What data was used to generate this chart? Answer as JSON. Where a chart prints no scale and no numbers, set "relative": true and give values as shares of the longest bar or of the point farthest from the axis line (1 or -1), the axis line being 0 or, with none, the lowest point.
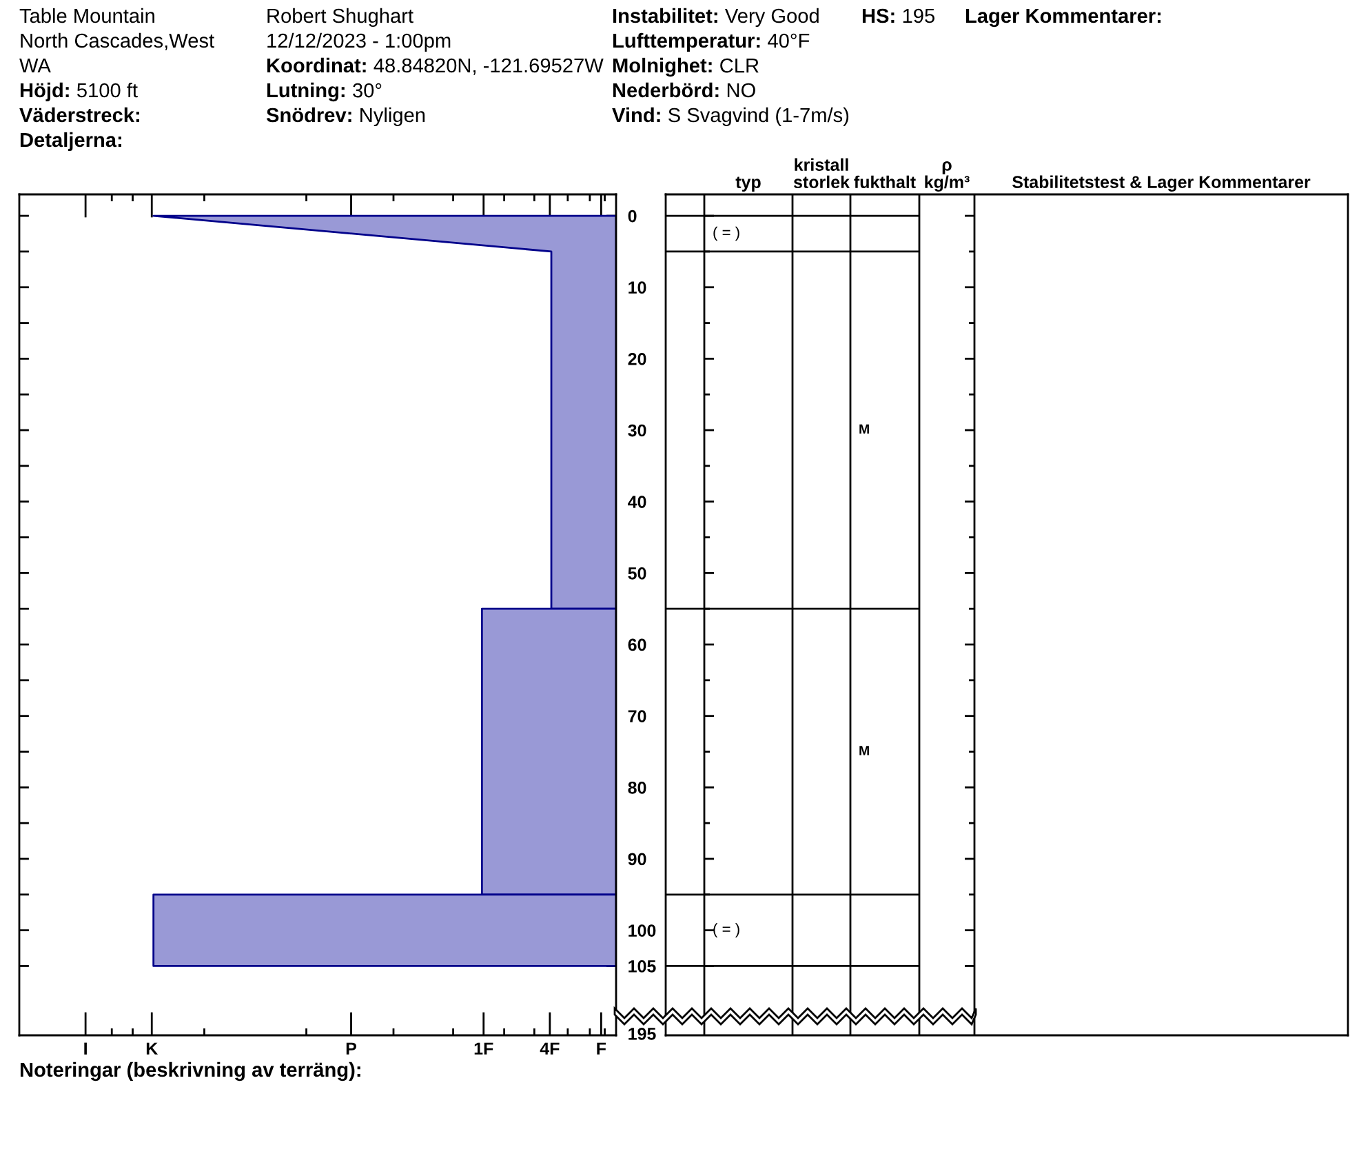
{
  "chart_data": [
    {
      "type": "other",
      "annotations": [
        "Table Mountain",
        "North Cascades,West",
        "WA",
        "Höjd:",
        "5100 ft",
        "Väderstreck:",
        "Detaljerna:"
      ]
    },
    {
      "type": "other",
      "annotations": [
        "Robert Shughart",
        "12/12/2023 - 1:00pm",
        "Koordinat:",
        "48.84820N, -121.69527W",
        "Lutning:",
        "30°",
        "Snödrev:",
        "Nyligen"
      ]
    },
    {
      "type": "other",
      "annotations": [
        "Instabilitet:",
        "Very Good",
        "Lufttemperatur:",
        "40°F",
        "Molnighet:",
        "CLR",
        "Nederbörd:",
        "NO",
        "Vind:",
        "S Svagvind (1-7m/s)"
      ]
    },
    {
      "type": "other",
      "annotations": [
        "HS:",
        "195"
      ]
    },
    {
      "type": "other",
      "annotations": [
        "Lager Kommentarer:"
      ]
    },
    {
      "type": "area",
      "orientation": "horizontal",
      "relative": true,
      "series": [
        {
          "x": [
            0,
            5,
            55
          ],
          "values": [
            -1,
            -0.14,
            -0.14
          ],
          "color": "#9999d6"
        },
        {
          "x": [
            55,
            95
          ],
          "values": [
            -0.29,
            -0.29
          ],
          "color": "#9999d6"
        },
        {
          "x": [
            95,
            105
          ],
          "values": [
            -1,
            -1
          ],
          "color": "#9999d6"
        }
      ],
      "xlim": [
        -1.29,
        0
      ],
      "ylim": [
        114.7,
        -3
      ],
      "yticks": [
        0,
        {
          "value": 5,
          "label": null
        },
        10,
        {
          "value": 15,
          "label": null
        },
        20,
        {
          "value": 25,
          "label": null
        },
        30,
        {
          "value": 35,
          "label": null
        },
        40,
        {
          "value": 45,
          "label": null
        },
        50,
        {
          "value": 55,
          "label": null
        },
        60,
        {
          "value": 65,
          "label": null
        },
        70,
        {
          "value": 75,
          "label": null
        },
        80,
        {
          "value": 85,
          "label": null
        },
        90,
        {
          "value": 95,
          "label": null
        },
        100,
        105
      ],
      "annotations": [
        "195",
        "Noteringar (beskrivning av terräng):"
      ]
    },
    {
      "type": "other",
      "annotations": [
        "I",
        "K",
        "P",
        "1F",
        "4F",
        "F"
      ]
    },
    {
      "type": "other",
      "categories": [
        null,
        "typ",
        "kristall\nstorlek",
        "fukthalt",
        "ρ\nkg/m³",
        "Stabilitetstest & Lager Kommentarer"
      ],
      "cell_labels": [
        [
          null,
          "( = )",
          null,
          null,
          null,
          null
        ],
        [
          null,
          null,
          null,
          "M",
          null,
          null
        ],
        [
          null,
          null,
          null,
          "M",
          null,
          null
        ],
        [
          null,
          "( = )",
          null,
          null,
          null,
          null
        ]
      ]
    }
  ]
}
